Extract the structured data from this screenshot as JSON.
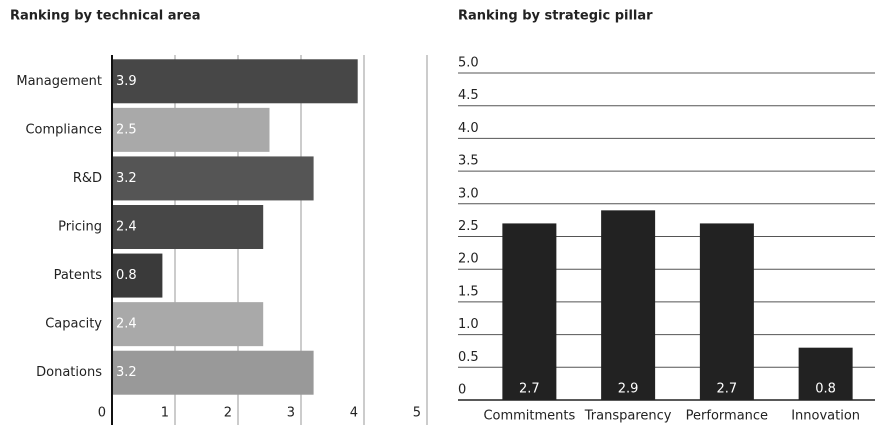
{
  "chart_data": [
    {
      "type": "hbar",
      "title": "Ranking by technical area",
      "categories": [
        "Management",
        "Compliance",
        "R&D",
        "Pricing",
        "Patents",
        "Capacity",
        "Donations"
      ],
      "values": [
        3.9,
        2.5,
        3.2,
        2.4,
        0.8,
        2.4,
        3.2
      ],
      "colors": [
        "#474747",
        "#a9a9a9",
        "#555555",
        "#474747",
        "#3a3a3a",
        "#a9a9a9",
        "#999999"
      ],
      "xlim": [
        0,
        5
      ],
      "xticks": [
        0,
        1,
        2,
        3,
        4,
        5
      ],
      "grid": true
    },
    {
      "type": "bar",
      "title": "Ranking by strategic pillar",
      "categories": [
        "Commitments",
        "Transparency",
        "Performance",
        "Innovation"
      ],
      "values": [
        2.7,
        2.9,
        2.7,
        0.8
      ],
      "color": "#222222",
      "ylim": [
        0,
        5
      ],
      "yticks": [
        0,
        0.5,
        {
          "value": 1,
          "label": "1.0"
        },
        1.5,
        {
          "value": 2,
          "label": "2.0"
        },
        2.5,
        {
          "value": 3,
          "label": "3.0"
        },
        3.5,
        {
          "value": 4,
          "label": "4.0"
        },
        4.5,
        {
          "value": 5,
          "label": "5.0"
        }
      ],
      "grid": true
    }
  ]
}
